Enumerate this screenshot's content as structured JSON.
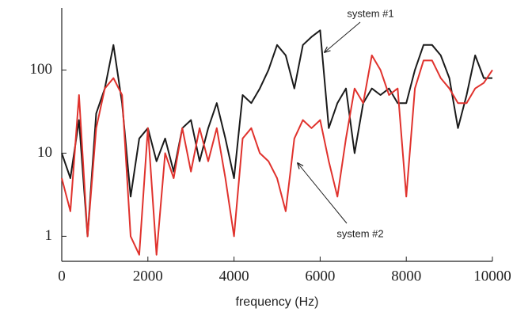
{
  "chart_data": {
    "type": "line",
    "xlabel": "frequency (Hz)",
    "x": [
      0,
      200,
      400,
      600,
      800,
      1000,
      1200,
      1400,
      1600,
      1800,
      2000,
      2200,
      2400,
      2600,
      2800,
      3000,
      3200,
      3400,
      3600,
      3800,
      4000,
      4200,
      4400,
      4600,
      4800,
      5000,
      5200,
      5400,
      5600,
      5800,
      6000,
      6200,
      6400,
      6600,
      6800,
      7000,
      7200,
      7400,
      7600,
      7800,
      8000,
      8200,
      8400,
      8600,
      8800,
      9000,
      9200,
      9400,
      9600,
      9800,
      10000
    ],
    "series": [
      {
        "name": "system #1",
        "color": "#1a1a1a",
        "values": [
          10,
          5,
          25,
          1,
          30,
          60,
          200,
          40,
          3,
          15,
          20,
          8,
          15,
          6,
          20,
          25,
          8,
          20,
          40,
          15,
          5,
          50,
          40,
          60,
          100,
          200,
          150,
          60,
          200,
          250,
          300,
          20,
          40,
          60,
          10,
          40,
          60,
          50,
          60,
          40,
          40,
          100,
          200,
          200,
          150,
          80,
          20,
          50,
          150,
          80,
          80
        ]
      },
      {
        "name": "system #2",
        "color": "#e0322d",
        "values": [
          5,
          2,
          50,
          1,
          20,
          60,
          80,
          50,
          1,
          0.6,
          20,
          0.6,
          10,
          5,
          20,
          6,
          20,
          8,
          20,
          5,
          1,
          15,
          20,
          10,
          8,
          5,
          2,
          15,
          25,
          20,
          25,
          8,
          3,
          15,
          60,
          40,
          150,
          100,
          50,
          60,
          3,
          60,
          130,
          130,
          80,
          60,
          40,
          40,
          60,
          70,
          100
        ]
      }
    ],
    "xlim": [
      0,
      10000
    ],
    "xticks": [
      0,
      2000,
      4000,
      6000,
      8000,
      10000
    ],
    "ylim": [
      0.5,
      500
    ],
    "yticks": [
      1,
      10,
      100
    ],
    "yscale": "log"
  }
}
